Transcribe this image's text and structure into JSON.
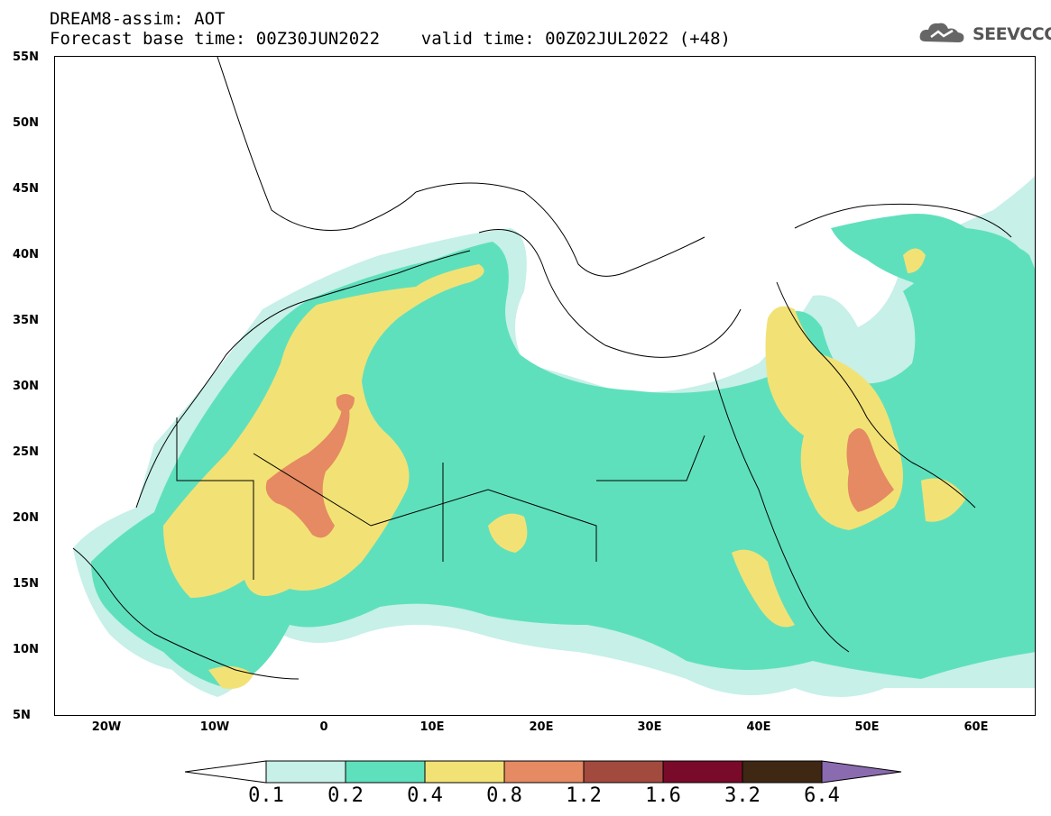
{
  "header": {
    "line1": "DREAM8-assim: AOT",
    "line2": "Forecast base time: 00Z30JUN2022    valid time: 00Z02JUL2022 (+48)"
  },
  "logo": {
    "text": "SEEVCCC",
    "icon": "cloud-icon"
  },
  "axes": {
    "lat_labels": [
      "55N",
      "50N",
      "45N",
      "40N",
      "35N",
      "30N",
      "25N",
      "20N",
      "15N",
      "10N",
      "5N"
    ],
    "lon_labels": [
      "20W",
      "10W",
      "0",
      "10E",
      "20E",
      "30E",
      "40E",
      "50E",
      "60E"
    ]
  },
  "colorbar": {
    "ticks": [
      "0.1",
      "0.2",
      "0.4",
      "0.8",
      "1.2",
      "1.6",
      "3.2",
      "6.4"
    ],
    "colors": [
      "#ffffff",
      "#c6f0e8",
      "#5fe0bd",
      "#f2e275",
      "#e58a62",
      "#a34a3f",
      "#7a0a2a",
      "#3e2813",
      "#8b6bb0"
    ]
  },
  "map": {
    "field": "AOT",
    "level_colors": {
      "0.1": "#c6f0e8",
      "0.2": "#5fe0bd",
      "0.4": "#f2e275",
      "0.8": "#e58a62"
    }
  }
}
